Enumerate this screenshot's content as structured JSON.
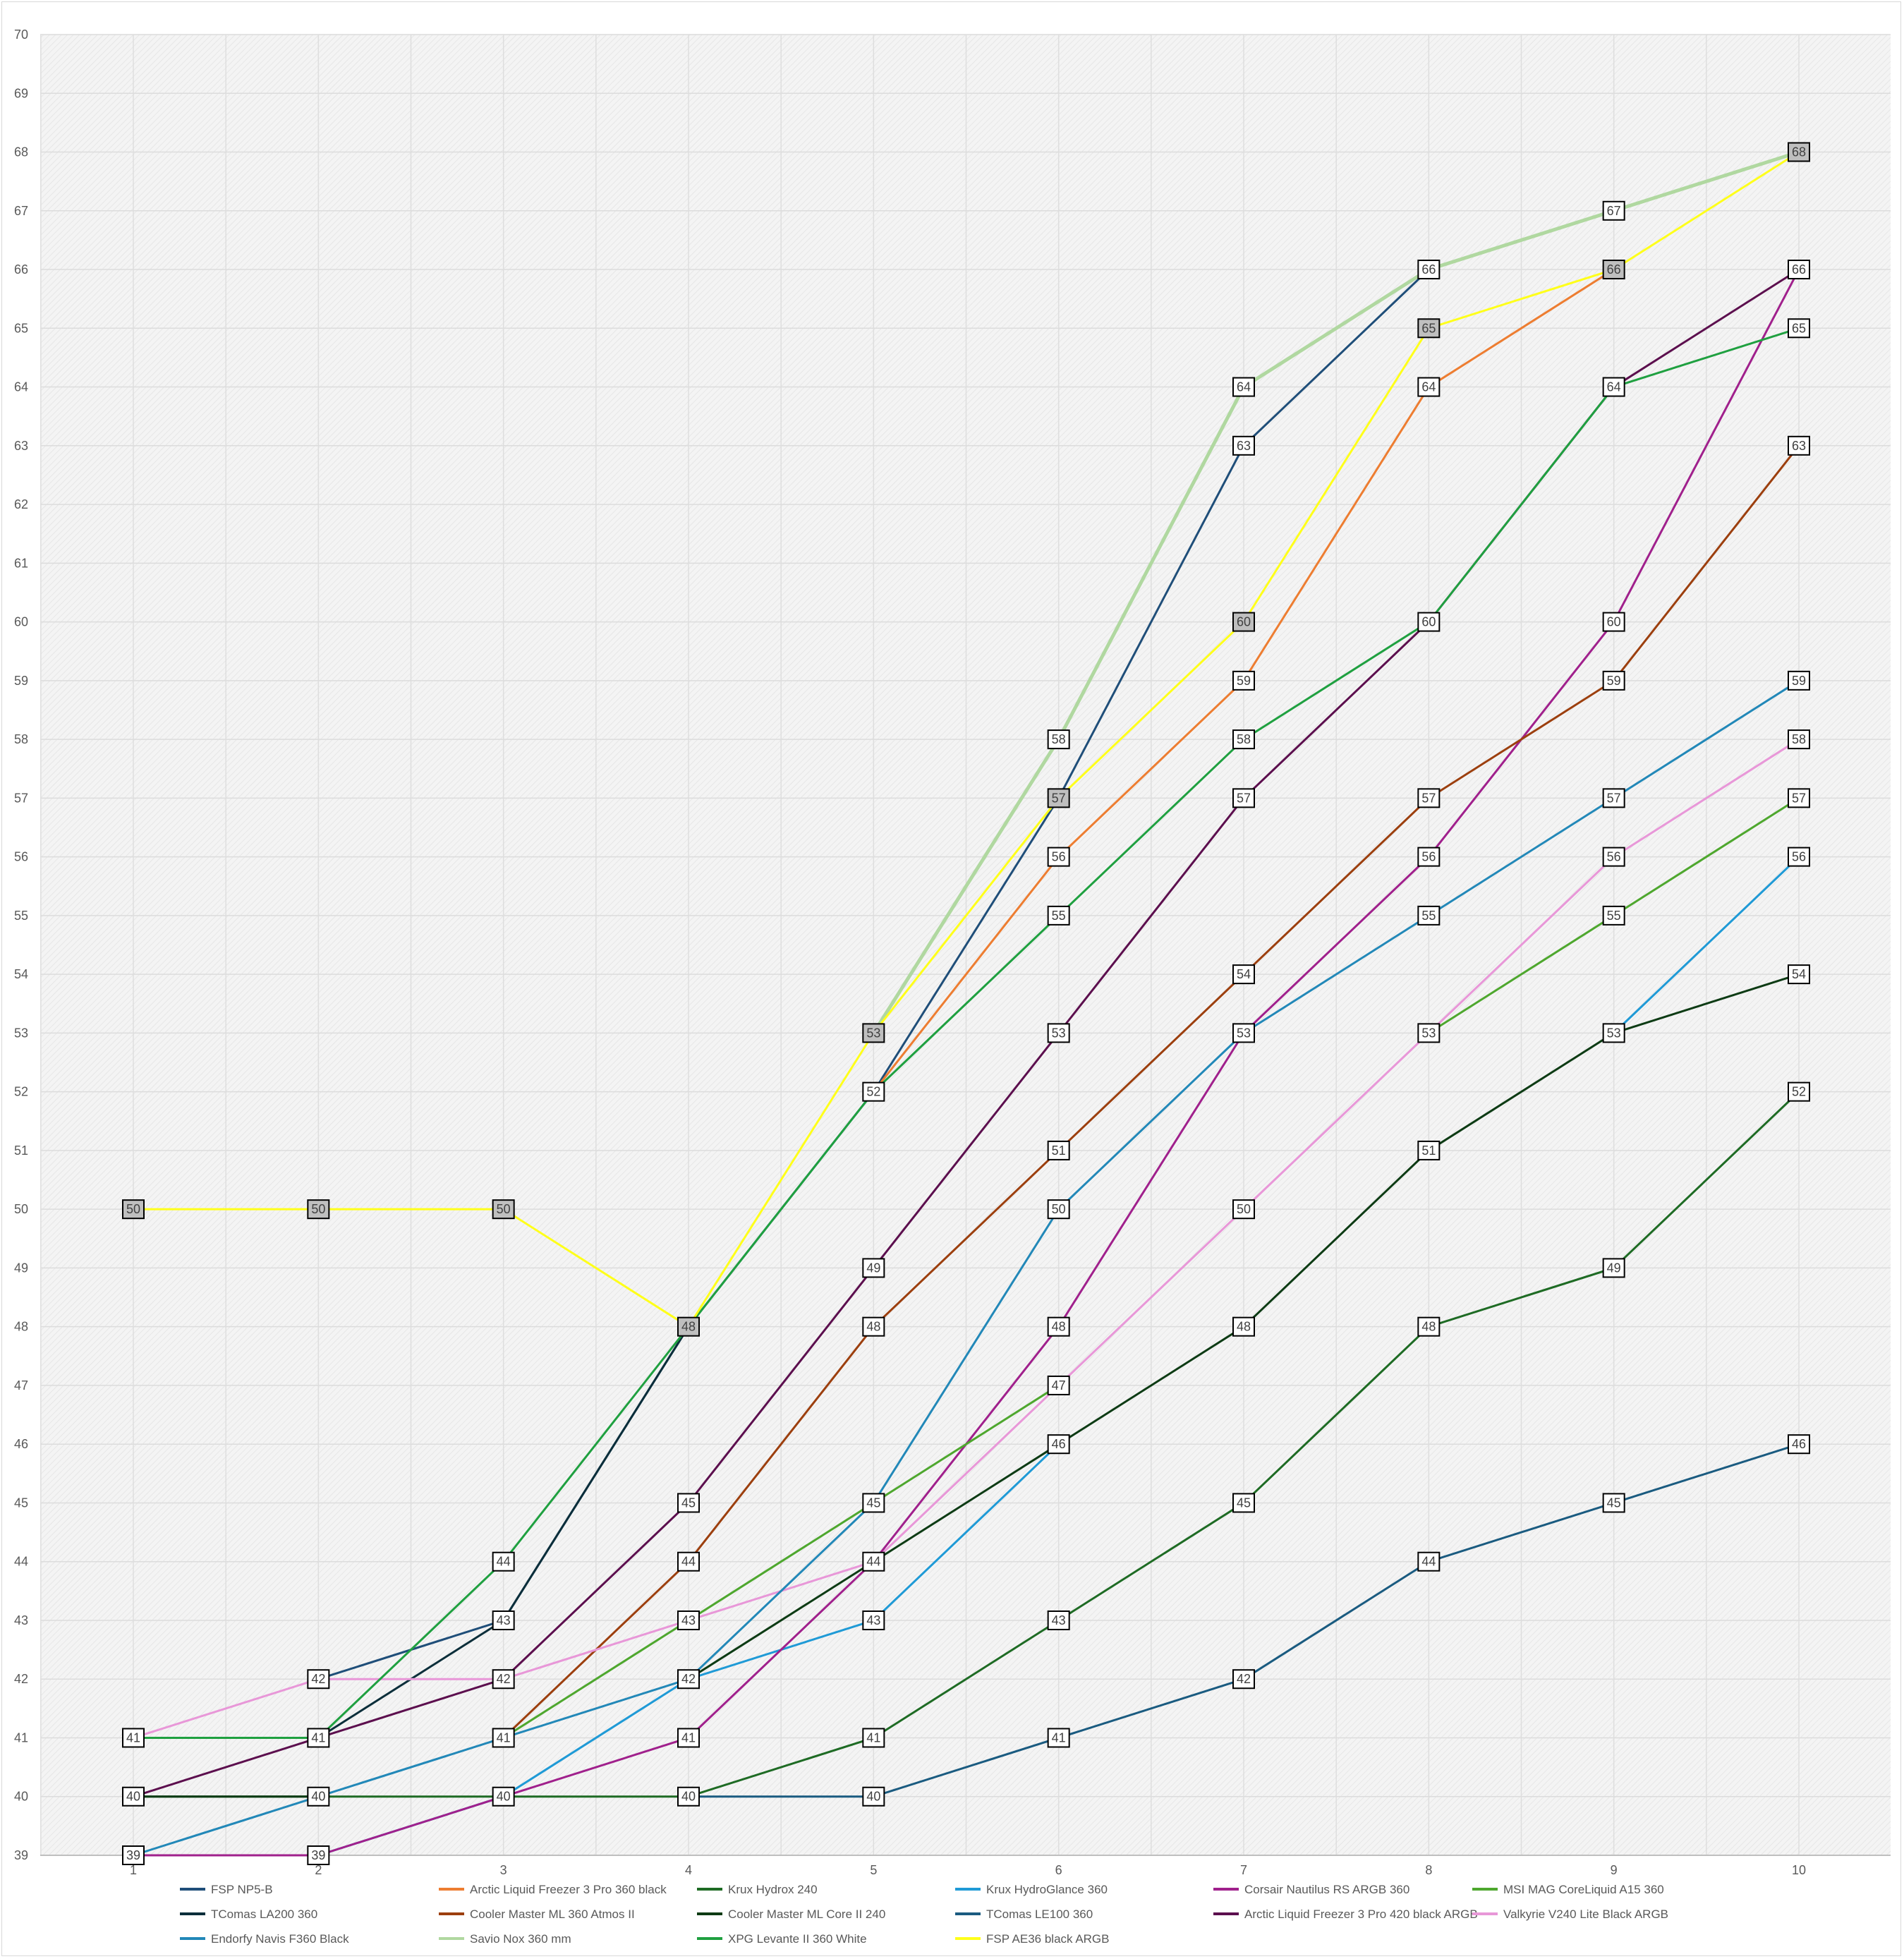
{
  "chart_data": {
    "type": "line",
    "title": "",
    "xlabel": "",
    "ylabel": "",
    "x": [
      1,
      2,
      3,
      4,
      5,
      6,
      7,
      8,
      9,
      10
    ],
    "ylim": [
      39,
      70
    ],
    "yticks": [
      39,
      40,
      41,
      42,
      43,
      44,
      45,
      46,
      47,
      48,
      49,
      50,
      51,
      52,
      53,
      54,
      55,
      56,
      57,
      58,
      59,
      60,
      61,
      62,
      63,
      64,
      65,
      66,
      67,
      68,
      69,
      70
    ],
    "grid": true,
    "legend_position": "bottom",
    "series": [
      {
        "name": "FSP NP5-B",
        "color": "#1f4e79",
        "width": 3,
        "values": [
          null,
          42,
          43,
          48,
          52,
          57,
          63,
          66,
          null,
          null
        ]
      },
      {
        "name": "Arctic Liquid Freezer 3 Pro 360 black",
        "color": "#ed7d31",
        "width": 3,
        "values": [
          null,
          null,
          null,
          null,
          52,
          56,
          59,
          64,
          66,
          null
        ]
      },
      {
        "name": "Krux Hydrox 240",
        "color": "#1e6b24",
        "width": 3,
        "values": [
          40,
          40,
          40,
          40,
          41,
          43,
          45,
          48,
          49,
          52
        ]
      },
      {
        "name": "Krux HydroGlance 360",
        "color": "#1f9ad6",
        "width": 3,
        "values": [
          39,
          39,
          40,
          42,
          43,
          46,
          null,
          null,
          53,
          56
        ]
      },
      {
        "name": "Corsair  Nautilus RS ARGB 360",
        "color": "#a0208c",
        "width": 3,
        "values": [
          39,
          39,
          40,
          41,
          44,
          48,
          53,
          56,
          60,
          66
        ]
      },
      {
        "name": "MSI MAG CoreLiquid A15 360",
        "color": "#4ea72e",
        "width": 3,
        "values": [
          null,
          null,
          41,
          43,
          45,
          47,
          null,
          53,
          55,
          57
        ]
      },
      {
        "name": "TComas LA200 360",
        "color": "#0b2e3a",
        "width": 3,
        "values": [
          null,
          41,
          43,
          48,
          null,
          null,
          null,
          null,
          null,
          null
        ]
      },
      {
        "name": "Cooler Master ML 360 Atmos II",
        "color": "#9c3f0e",
        "width": 3,
        "values": [
          null,
          null,
          41,
          44,
          48,
          51,
          54,
          57,
          59,
          63
        ]
      },
      {
        "name": "Cooler Master ML Core II 240",
        "color": "#0d3b14",
        "width": 3,
        "values": [
          40,
          40,
          null,
          42,
          44,
          46,
          48,
          51,
          53,
          54
        ]
      },
      {
        "name": "TComas LE100 360",
        "color": "#1a5b80",
        "width": 3,
        "values": [
          null,
          null,
          null,
          40,
          40,
          41,
          42,
          44,
          45,
          46
        ]
      },
      {
        "name": "Arctic Liquid Freezer 3 Pro 420 black ARGB",
        "color": "#5c0f4e",
        "width": 3,
        "values": [
          40,
          41,
          42,
          45,
          49,
          53,
          57,
          60,
          64,
          66
        ]
      },
      {
        "name": "Valkyrie V240 Lite Black ARGB",
        "color": "#e897d8",
        "width": 3,
        "values": [
          41,
          42,
          42,
          43,
          44,
          47,
          50,
          53,
          56,
          58
        ]
      },
      {
        "name": "Endorfy Navis F360 Black",
        "color": "#2288b8",
        "width": 3,
        "values": [
          39,
          40,
          41,
          42,
          45,
          50,
          53,
          55,
          57,
          59
        ]
      },
      {
        "name": "Savio Nox 360 mm",
        "color": "#b0d8a0",
        "width": 5,
        "values": [
          null,
          null,
          null,
          null,
          53,
          58,
          64,
          66,
          67,
          68
        ]
      },
      {
        "name": "XPG Levante II 360 White",
        "color": "#1fa040",
        "width": 3,
        "values": [
          41,
          41,
          44,
          48,
          52,
          55,
          58,
          60,
          64,
          65
        ]
      },
      {
        "name": "FSP AE36 black ARGB",
        "color": "#ffff1a",
        "width": 3,
        "values": [
          50,
          50,
          50,
          48,
          53,
          57,
          60,
          65,
          66,
          68
        ]
      }
    ],
    "data_labels": [
      {
        "x": 1,
        "y": 50,
        "text": "50",
        "shaded": true
      },
      {
        "x": 2,
        "y": 50,
        "text": "50",
        "shaded": true
      },
      {
        "x": 3,
        "y": 50,
        "text": "50",
        "shaded": true
      },
      {
        "x": 4,
        "y": 48,
        "text": "48",
        "shaded": true
      },
      {
        "x": 5,
        "y": 53,
        "text": "53",
        "shaded": true
      },
      {
        "x": 6,
        "y": 57,
        "text": "57",
        "shaded": true
      },
      {
        "x": 7,
        "y": 60,
        "text": "60",
        "shaded": true
      },
      {
        "x": 8,
        "y": 65,
        "text": "65",
        "shaded": true
      },
      {
        "x": 9,
        "y": 66,
        "text": "66",
        "shaded": true
      },
      {
        "x": 10,
        "y": 68,
        "text": "68",
        "shaded": true
      },
      {
        "x": 1,
        "y": 41,
        "text": "41"
      },
      {
        "x": 1,
        "y": 40,
        "text": "40"
      },
      {
        "x": 1,
        "y": 39,
        "text": "39"
      },
      {
        "x": 2,
        "y": 42,
        "text": "42"
      },
      {
        "x": 2,
        "y": 41,
        "text": "41"
      },
      {
        "x": 2,
        "y": 40,
        "text": "40"
      },
      {
        "x": 2,
        "y": 39,
        "text": "39"
      },
      {
        "x": 3,
        "y": 44,
        "text": "44"
      },
      {
        "x": 3,
        "y": 43,
        "text": "43"
      },
      {
        "x": 3,
        "y": 42,
        "text": "42"
      },
      {
        "x": 3,
        "y": 41,
        "text": "41"
      },
      {
        "x": 3,
        "y": 40,
        "text": "40"
      },
      {
        "x": 4,
        "y": 45,
        "text": "45"
      },
      {
        "x": 4,
        "y": 44,
        "text": "44"
      },
      {
        "x": 4,
        "y": 43,
        "text": "43"
      },
      {
        "x": 4,
        "y": 42,
        "text": "42"
      },
      {
        "x": 4,
        "y": 41,
        "text": "41"
      },
      {
        "x": 4,
        "y": 40,
        "text": "40"
      },
      {
        "x": 5,
        "y": 52,
        "text": "52"
      },
      {
        "x": 5,
        "y": 49,
        "text": "49"
      },
      {
        "x": 5,
        "y": 48,
        "text": "48"
      },
      {
        "x": 5,
        "y": 45,
        "text": "45"
      },
      {
        "x": 5,
        "y": 44,
        "text": "44"
      },
      {
        "x": 5,
        "y": 43,
        "text": "43"
      },
      {
        "x": 5,
        "y": 41,
        "text": "41"
      },
      {
        "x": 5,
        "y": 40,
        "text": "40"
      },
      {
        "x": 6,
        "y": 58,
        "text": "58"
      },
      {
        "x": 6,
        "y": 56,
        "text": "56"
      },
      {
        "x": 6,
        "y": 55,
        "text": "55"
      },
      {
        "x": 6,
        "y": 53,
        "text": "53"
      },
      {
        "x": 6,
        "y": 51,
        "text": "51"
      },
      {
        "x": 6,
        "y": 50,
        "text": "50"
      },
      {
        "x": 6,
        "y": 48,
        "text": "48"
      },
      {
        "x": 6,
        "y": 47,
        "text": "47"
      },
      {
        "x": 6,
        "y": 46,
        "text": "46"
      },
      {
        "x": 6,
        "y": 43,
        "text": "43"
      },
      {
        "x": 6,
        "y": 41,
        "text": "41"
      },
      {
        "x": 7,
        "y": 64,
        "text": "64"
      },
      {
        "x": 7,
        "y": 63,
        "text": "63"
      },
      {
        "x": 7,
        "y": 59,
        "text": "59"
      },
      {
        "x": 7,
        "y": 58,
        "text": "58"
      },
      {
        "x": 7,
        "y": 57,
        "text": "57"
      },
      {
        "x": 7,
        "y": 54,
        "text": "54"
      },
      {
        "x": 7,
        "y": 53,
        "text": "53"
      },
      {
        "x": 7,
        "y": 50,
        "text": "50"
      },
      {
        "x": 7,
        "y": 48,
        "text": "48"
      },
      {
        "x": 7,
        "y": 45,
        "text": "45"
      },
      {
        "x": 7,
        "y": 42,
        "text": "42"
      },
      {
        "x": 8,
        "y": 66,
        "text": "66"
      },
      {
        "x": 8,
        "y": 64,
        "text": "64"
      },
      {
        "x": 8,
        "y": 60,
        "text": "60"
      },
      {
        "x": 8,
        "y": 57,
        "text": "57"
      },
      {
        "x": 8,
        "y": 56,
        "text": "56"
      },
      {
        "x": 8,
        "y": 55,
        "text": "55"
      },
      {
        "x": 8,
        "y": 53,
        "text": "53"
      },
      {
        "x": 8,
        "y": 51,
        "text": "51"
      },
      {
        "x": 8,
        "y": 48,
        "text": "48"
      },
      {
        "x": 8,
        "y": 44,
        "text": "44"
      },
      {
        "x": 9,
        "y": 67,
        "text": "67"
      },
      {
        "x": 9,
        "y": 64,
        "text": "64"
      },
      {
        "x": 9,
        "y": 60,
        "text": "60"
      },
      {
        "x": 9,
        "y": 59,
        "text": "59"
      },
      {
        "x": 9,
        "y": 57,
        "text": "57"
      },
      {
        "x": 9,
        "y": 56,
        "text": "56"
      },
      {
        "x": 9,
        "y": 55,
        "text": "55"
      },
      {
        "x": 9,
        "y": 53,
        "text": "53"
      },
      {
        "x": 9,
        "y": 49,
        "text": "49"
      },
      {
        "x": 9,
        "y": 45,
        "text": "45"
      },
      {
        "x": 10,
        "y": 66,
        "text": "66"
      },
      {
        "x": 10,
        "y": 65,
        "text": "65"
      },
      {
        "x": 10,
        "y": 63,
        "text": "63"
      },
      {
        "x": 10,
        "y": 59,
        "text": "59"
      },
      {
        "x": 10,
        "y": 58,
        "text": "58"
      },
      {
        "x": 10,
        "y": 57,
        "text": "57"
      },
      {
        "x": 10,
        "y": 56,
        "text": "56"
      },
      {
        "x": 10,
        "y": 54,
        "text": "54"
      },
      {
        "x": 10,
        "y": 52,
        "text": "52"
      },
      {
        "x": 10,
        "y": 46,
        "text": "46"
      }
    ]
  }
}
